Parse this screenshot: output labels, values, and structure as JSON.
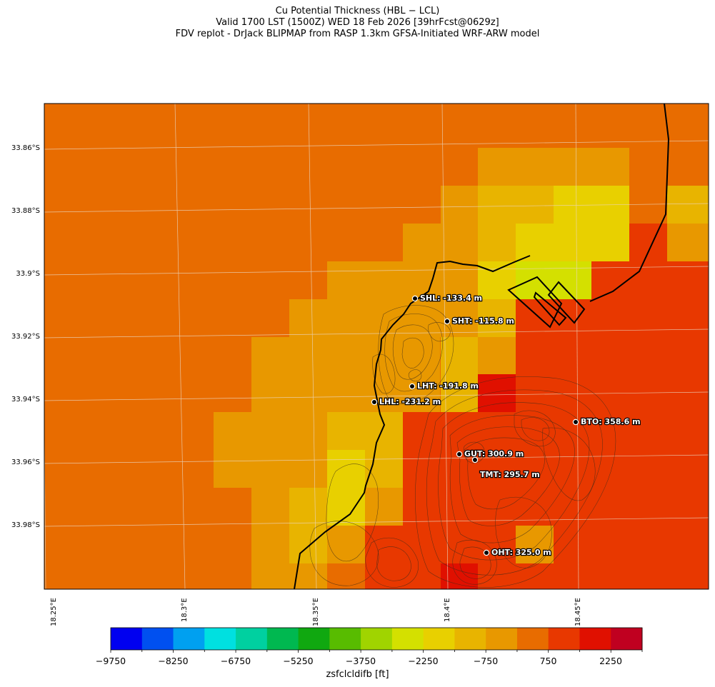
{
  "figure": {
    "title_line1": "Cu Potential Thickness (HBL − LCL)",
    "title_line2": "Valid 1700 LST (1500Z) WED 18 Feb 2026 [39hrFcst@0629z]",
    "title_line3": "FDV replot - DrJack BLIPMAP from RASP 1.3km GFSA-Initiated WRF-ARW model"
  },
  "axes": {
    "lat_labels": [
      "33.86°S",
      "33.88°S",
      "33.9°S",
      "33.92°S",
      "33.94°S",
      "33.96°S",
      "33.98°S"
    ],
    "lon_labels": [
      "18.25°E",
      "18.3°E",
      "18.35°E",
      "18.4°E",
      "18.45°E"
    ]
  },
  "stations": [
    {
      "name": "SHL",
      "label": "SHL: -133.4 m",
      "value_m": -133.4
    },
    {
      "name": "SHT",
      "label": "SHT: -115.8 m",
      "value_m": -115.8
    },
    {
      "name": "LHT",
      "label": "LHT: -191.8 m",
      "value_m": -191.8
    },
    {
      "name": "LHL",
      "label": "LHL: -231.2 m",
      "value_m": -231.2
    },
    {
      "name": "BTO",
      "label": "BTO: 358.6 m",
      "value_m": 358.6
    },
    {
      "name": "GUT",
      "label": "GUT: 300.9 m",
      "value_m": 300.9
    },
    {
      "name": "TMT",
      "label": "TMT: 295.7 m",
      "value_m": 295.7
    },
    {
      "name": "OHT",
      "label": "OHT: 325.0 m",
      "value_m": 325.0
    }
  ],
  "colorbar": {
    "label": "zsfclcldifb [ft]",
    "tick_labels": [
      "−9750",
      "−8250",
      "−6750",
      "−5250",
      "−3750",
      "−2250",
      "−750",
      "750",
      "2250"
    ],
    "colors": [
      "#0000f0",
      "#0050f0",
      "#00a0f0",
      "#00e0e0",
      "#00d0a0",
      "#00b850",
      "#10a810",
      "#58bc00",
      "#a0d400",
      "#d4e000",
      "#e8d000",
      "#e8b400",
      "#e89800",
      "#e86c00",
      "#e83800",
      "#e01000",
      "#c00020"
    ]
  },
  "colors": {
    "land_outline": "#000000",
    "contour": "#3a2a1a",
    "graticule": "#e8d0b8"
  }
}
